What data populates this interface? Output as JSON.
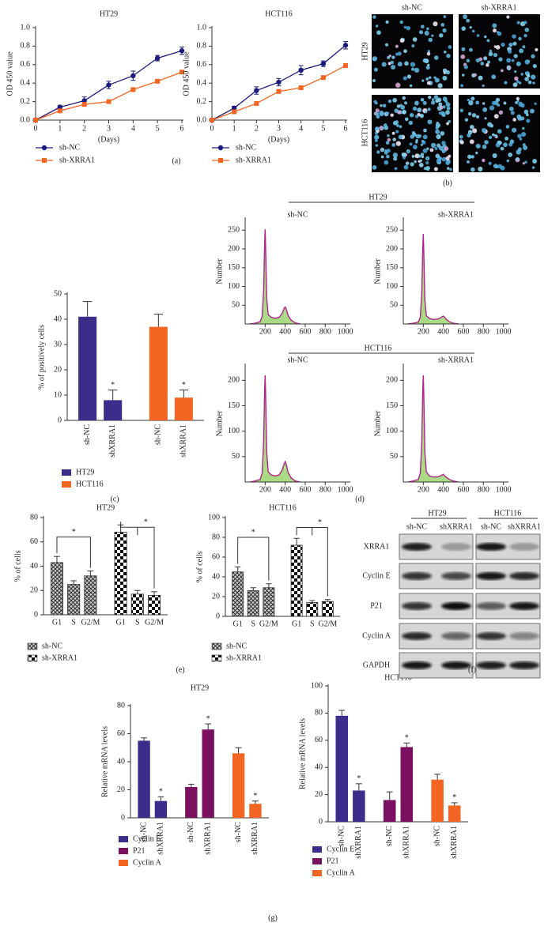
{
  "panel_labels": [
    "(a)",
    "(b)",
    "(c)",
    "(d)",
    "(e)",
    "(f)",
    "(g)"
  ],
  "figure_b": {
    "columns": [
      "sh-NC",
      "sh-XRRA1"
    ],
    "rows": [
      "HT29",
      "HCT116"
    ]
  },
  "figure_d": {
    "groups": [
      "HT29",
      "HCT116"
    ]
  },
  "figure_f": {
    "groups": [
      "HT29",
      "HCT116"
    ],
    "lanes": [
      "sh-NC",
      "shXRRA1"
    ],
    "proteins": [
      "XRRA1",
      "Cyclin E",
      "P21",
      "Cyclin A",
      "GAPDH"
    ]
  },
  "chart_data": [
    {
      "type": "line",
      "title": "HT29",
      "x_label": "(Days)",
      "y_label": "OD 450 value",
      "x": [
        0,
        1,
        2,
        3,
        4,
        5,
        6
      ],
      "xlim": [
        0,
        6
      ],
      "xticks": [
        0,
        1,
        2,
        3,
        4,
        5,
        6
      ],
      "ylim": [
        0,
        1
      ],
      "yticks": [
        {
          "value": 0,
          "label": "0.0"
        },
        0.2,
        0.4,
        0.6,
        0.8,
        {
          "value": 1,
          "label": "1.0"
        }
      ],
      "series": [
        {
          "name": "sh-NC",
          "color": "#1c1c7c",
          "marker": "circle",
          "values": [
            0,
            0.14,
            0.21,
            0.38,
            0.48,
            0.67,
            0.75
          ],
          "errors": [
            0,
            0.02,
            0.04,
            0.04,
            0.05,
            0.03,
            0.04
          ]
        },
        {
          "name": "sh-XRRA1",
          "color": "#f26522",
          "marker": "square",
          "values": [
            0,
            0.1,
            0.17,
            0.2,
            0.33,
            0.42,
            0.52
          ],
          "errors": [
            0,
            0.01,
            0.01,
            0.01,
            0.01,
            0.01,
            0.01
          ]
        }
      ]
    },
    {
      "type": "line",
      "title": "HCT116",
      "x_label": "(Days)",
      "y_label": "OD 450 value",
      "x": [
        0,
        1,
        2,
        3,
        4,
        5,
        6
      ],
      "xlim": [
        0,
        6
      ],
      "xticks": [
        0,
        1,
        2,
        3,
        4,
        5,
        6
      ],
      "ylim": [
        0,
        1
      ],
      "yticks": [
        {
          "value": 0,
          "label": "0.0"
        },
        0.2,
        0.4,
        0.6,
        0.8,
        {
          "value": 1,
          "label": "1.0"
        }
      ],
      "series": [
        {
          "name": "sh-NC",
          "color": "#1c1c7c",
          "marker": "circle",
          "values": [
            0,
            0.13,
            0.32,
            0.41,
            0.54,
            0.61,
            0.81
          ],
          "errors": [
            0,
            0.02,
            0.04,
            0.04,
            0.05,
            0.03,
            0.04
          ]
        },
        {
          "name": "sh-XRRA1",
          "color": "#f26522",
          "marker": "square",
          "values": [
            0,
            0.09,
            0.18,
            0.31,
            0.35,
            0.46,
            0.59
          ],
          "errors": [
            0,
            0.01,
            0.01,
            0.01,
            0.01,
            0.01,
            0.01
          ]
        }
      ]
    },
    {
      "type": "bar",
      "y_label": "% of positively cells",
      "ylim": [
        0,
        50
      ],
      "yticks": [
        0,
        10,
        20,
        30,
        40,
        50
      ],
      "categories": [
        "sh-NC",
        "shXRRA1"
      ],
      "rotated_labels": true,
      "series": [
        {
          "name": "HT29",
          "color": "#3b2d8a",
          "values": [
            41,
            8
          ],
          "errors": [
            6,
            4
          ],
          "annotations": [
            null,
            "*"
          ]
        },
        {
          "name": "HCT116",
          "color": "#f26522",
          "values": [
            37,
            9
          ],
          "errors": [
            5,
            3
          ],
          "annotations": [
            null,
            "*"
          ]
        }
      ]
    },
    {
      "type": "area",
      "title": "sh-NC",
      "y_label": "Number",
      "xlim": [
        0,
        1050
      ],
      "xticks": [
        200,
        400,
        600,
        800,
        1000
      ],
      "ylim": [
        0,
        280
      ],
      "yticks": [
        50,
        100,
        150,
        200,
        250
      ],
      "line_color": "#b0248c",
      "fill_color": "#9ad46e",
      "x": [
        50,
        100,
        150,
        170,
        185,
        195,
        200,
        205,
        215,
        230,
        260,
        300,
        340,
        370,
        390,
        400,
        410,
        430,
        460,
        500,
        550
      ],
      "values": [
        0,
        2,
        6,
        20,
        90,
        220,
        252,
        200,
        70,
        25,
        18,
        15,
        18,
        28,
        42,
        45,
        40,
        22,
        10,
        3,
        0
      ]
    },
    {
      "type": "area",
      "title": "sh-XRRA1",
      "y_label": "Number",
      "xlim": [
        0,
        1050
      ],
      "xticks": [
        200,
        400,
        600,
        800,
        1000
      ],
      "ylim": [
        0,
        280
      ],
      "yticks": [
        50,
        100,
        150,
        200,
        250
      ],
      "line_color": "#b0248c",
      "fill_color": "#9ad46e",
      "x": [
        50,
        100,
        150,
        170,
        185,
        195,
        200,
        205,
        215,
        230,
        260,
        300,
        340,
        370,
        390,
        400,
        410,
        430,
        460,
        500,
        550
      ],
      "values": [
        0,
        2,
        5,
        18,
        85,
        210,
        240,
        190,
        65,
        22,
        15,
        12,
        13,
        16,
        20,
        21,
        19,
        12,
        6,
        2,
        0
      ]
    },
    {
      "type": "area",
      "title": "sh-NC",
      "y_label": "Number",
      "xlim": [
        0,
        1050
      ],
      "xticks": [
        200,
        400,
        600,
        800,
        1000
      ],
      "ylim": [
        0,
        230
      ],
      "yticks": [
        50,
        100,
        150,
        200
      ],
      "line_color": "#b0248c",
      "fill_color": "#9ad46e",
      "x": [
        50,
        100,
        150,
        170,
        185,
        195,
        200,
        205,
        215,
        230,
        260,
        300,
        340,
        370,
        390,
        400,
        410,
        430,
        460,
        500,
        550
      ],
      "values": [
        0,
        2,
        5,
        18,
        80,
        185,
        210,
        170,
        60,
        20,
        14,
        12,
        14,
        24,
        36,
        40,
        35,
        18,
        8,
        2,
        0
      ]
    },
    {
      "type": "area",
      "title": "sh-XRRA1",
      "y_label": "Number",
      "xlim": [
        0,
        1050
      ],
      "xticks": [
        200,
        400,
        600,
        800,
        1000
      ],
      "ylim": [
        0,
        230
      ],
      "yticks": [
        50,
        100,
        150,
        200
      ],
      "line_color": "#b0248c",
      "fill_color": "#9ad46e",
      "x": [
        50,
        100,
        150,
        170,
        185,
        195,
        200,
        205,
        215,
        230,
        260,
        300,
        340,
        370,
        390,
        400,
        410,
        430,
        460,
        500,
        550
      ],
      "values": [
        0,
        2,
        5,
        18,
        80,
        185,
        210,
        170,
        60,
        20,
        12,
        10,
        10,
        12,
        14,
        15,
        13,
        9,
        5,
        2,
        0
      ]
    },
    {
      "type": "bar",
      "title": "HT29",
      "y_label": "% of cells",
      "ylim": [
        0,
        80
      ],
      "yticks": [
        0,
        20,
        40,
        60,
        80
      ],
      "categories": [
        "G1",
        "S",
        "G2/M"
      ],
      "annotation": "*",
      "series": [
        {
          "name": "sh-NC",
          "pattern": "crosshatch",
          "values": [
            43,
            25,
            32
          ],
          "errors": [
            5,
            3,
            4
          ]
        },
        {
          "name": "sh-XRRA1",
          "pattern": "checker",
          "values": [
            68,
            17,
            16
          ],
          "errors": [
            6,
            3,
            3
          ]
        }
      ]
    },
    {
      "type": "bar",
      "title": "HCT116",
      "y_label": "% of cells",
      "ylim": [
        0,
        100
      ],
      "yticks": [
        0,
        20,
        40,
        60,
        80,
        100
      ],
      "categories": [
        "G1",
        "S",
        "G2/M"
      ],
      "annotation": "*",
      "series": [
        {
          "name": "sh-NC",
          "pattern": "crosshatch",
          "values": [
            45,
            26,
            29
          ],
          "errors": [
            5,
            3,
            4
          ]
        },
        {
          "name": "sh-XRRA1",
          "pattern": "checker",
          "values": [
            72,
            14,
            15
          ],
          "errors": [
            7,
            2,
            2
          ]
        }
      ]
    },
    {
      "type": "bar",
      "title": "HT29",
      "y_label": "Relative mRNA levels",
      "ylim": [
        0,
        80
      ],
      "yticks": [
        0,
        20,
        40,
        60,
        80
      ],
      "categories": [
        "sh-NC",
        "shXRRA1"
      ],
      "rotated_labels": true,
      "series": [
        {
          "name": "Cyclin E",
          "color": "#3b2d8a",
          "values": [
            55,
            12
          ],
          "errors": [
            2,
            3
          ],
          "annotations": [
            null,
            "*"
          ]
        },
        {
          "name": "P21",
          "color": "#7b1060",
          "values": [
            22,
            63
          ],
          "errors": [
            2,
            4
          ],
          "annotations": [
            null,
            "*"
          ]
        },
        {
          "name": "Cyclin A",
          "color": "#f26522",
          "values": [
            46,
            10
          ],
          "errors": [
            4,
            2
          ],
          "annotations": [
            null,
            "*"
          ]
        }
      ]
    },
    {
      "type": "bar",
      "title": "HCT116",
      "y_label": "Relative mRNA levels",
      "ylim": [
        0,
        100
      ],
      "yticks": [
        0,
        20,
        40,
        60,
        80,
        100
      ],
      "categories": [
        "sh-NC",
        "shXRRA1"
      ],
      "rotated_labels": true,
      "series": [
        {
          "name": "Cyclin E",
          "color": "#3b2d8a",
          "values": [
            78,
            23
          ],
          "errors": [
            4,
            5
          ],
          "annotations": [
            null,
            "*"
          ]
        },
        {
          "name": "P21",
          "color": "#7b1060",
          "values": [
            16,
            55
          ],
          "errors": [
            6,
            3
          ],
          "annotations": [
            null,
            "*"
          ]
        },
        {
          "name": "Cyclin A",
          "color": "#f26522",
          "values": [
            31,
            12
          ],
          "errors": [
            4,
            2
          ],
          "annotations": [
            null,
            "*"
          ]
        }
      ]
    }
  ]
}
